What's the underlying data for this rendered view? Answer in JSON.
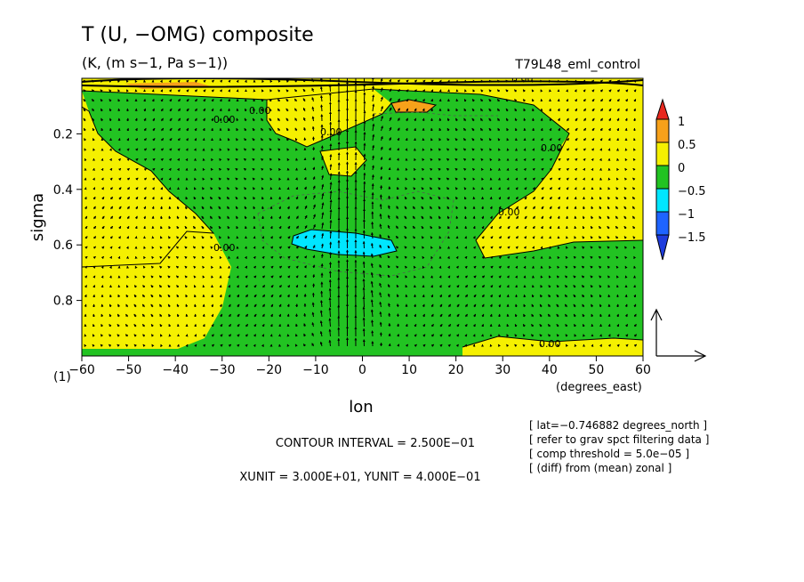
{
  "title": "T (U, −OMG) composite",
  "units": "(K, (m s−1, Pa s−1))",
  "experiment": "T79L48_eml_control",
  "chart_data": {
    "type": "contour-vector",
    "xlabel": "lon",
    "xunits": "(degrees_east)",
    "ylabel": "sigma",
    "xlim": [
      -60,
      60
    ],
    "ylim": [
      1.0,
      0.0
    ],
    "xticks": [
      -60,
      -50,
      -40,
      -30,
      -20,
      -10,
      0,
      10,
      20,
      30,
      40,
      50,
      60
    ],
    "xtick_labels": [
      "−60",
      "−50",
      "−40",
      "−30",
      "−20",
      "−10",
      "0",
      "10",
      "20",
      "30",
      "40",
      "50",
      "60"
    ],
    "yticks": [
      0.2,
      0.4,
      0.6,
      0.8
    ],
    "ytick_labels": [
      "0.2",
      "0.4",
      "0.6",
      "0.8"
    ],
    "corner_label": "(1)",
    "contour_label": "0.00",
    "colorbar": {
      "levels": [
        "1",
        "0.5",
        "0",
        "−0.5",
        "−1",
        "−1.5"
      ],
      "colors": [
        "#e8281e",
        "#f7a11a",
        "#f5f000",
        "#22c322",
        "#00e6ff",
        "#1e64ff",
        "#1e3cdc"
      ]
    },
    "regions": [
      {
        "name": "negative (-0.5..0)",
        "color": "#22c322"
      },
      {
        "name": "positive (0..0.5)",
        "color": "#f5f000"
      },
      {
        "name": "strong negative (-1..-0.5)",
        "color": "#00e6ff"
      },
      {
        "name": "strong positive (0.5..1)",
        "color": "#f7a11a"
      }
    ],
    "contour_interval": "CONTOUR INTERVAL = 2.500E−01",
    "vector_units": "XUNIT = 3.000E+01, YUNIT = 4.000E−01"
  },
  "notes": [
    "[ lat=−0.746882 degrees_north ]",
    "[ refer to grav spct filtering data ]",
    "[ comp threshold = 5.0e−05 ]",
    "[ (diff) from (mean) zonal ]"
  ]
}
